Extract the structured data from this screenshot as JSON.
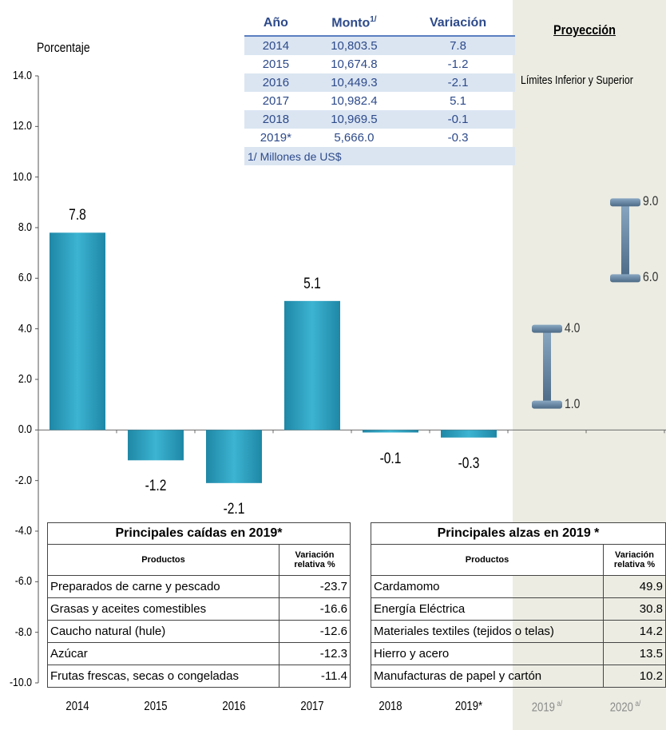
{
  "chart_data": {
    "type": "bar",
    "ylabel": "Porcentaje",
    "ylim": [
      -10,
      14
    ],
    "yticks": [
      "14.0",
      "12.0",
      "10.0",
      "8.0",
      "6.0",
      "4.0",
      "2.0",
      "0.0",
      "-2.0",
      "-4.0",
      "-6.0",
      "-8.0",
      "-10.0"
    ],
    "categories": [
      "2014",
      "2015",
      "2016",
      "2017",
      "2018",
      "2019*"
    ],
    "values": [
      7.8,
      -1.2,
      -2.1,
      5.1,
      -0.1,
      -0.3
    ],
    "value_labels": [
      "7.8",
      "-1.2",
      "-2.1",
      "5.1",
      "-0.1",
      "-0.3"
    ],
    "projection": {
      "title": "Proyección",
      "subtitle": "Límites Inferior y Superior",
      "categories": [
        "2019",
        "2020"
      ],
      "superscript": "a/",
      "ranges": [
        {
          "low": 1.0,
          "high": 4.0,
          "low_label": "1.0",
          "high_label": "4.0"
        },
        {
          "low": 6.0,
          "high": 9.0,
          "low_label": "6.0",
          "high_label": "9.0"
        }
      ]
    },
    "bar_color": "#2ea3c1",
    "projection_color": "#5f7f9c"
  },
  "data_table": {
    "headers": {
      "year": "Año",
      "amount": "Monto",
      "amount_sup": "1/",
      "variation": "Variación"
    },
    "rows": [
      {
        "year": "2014",
        "amount": "10,803.5",
        "variation": "7.8"
      },
      {
        "year": "2015",
        "amount": "10,674.8",
        "variation": "-1.2"
      },
      {
        "year": "2016",
        "amount": "10,449.3",
        "variation": "-2.1"
      },
      {
        "year": "2017",
        "amount": "10,982.4",
        "variation": "5.1"
      },
      {
        "year": "2018",
        "amount": "10,969.5",
        "variation": "-0.1"
      },
      {
        "year": "2019*",
        "amount": "5,666.0",
        "variation": "-0.3"
      }
    ],
    "note": "1/ Millones de US$"
  },
  "falls_table": {
    "title": "Principales caídas en 2019*",
    "col_product": "Productos",
    "col_variation_1": "Variación",
    "col_variation_2": "relativa %",
    "rows": [
      {
        "product": "Preparados de carne y pescado",
        "value": "-23.7"
      },
      {
        "product": "Grasas y aceites comestibles",
        "value": "-16.6"
      },
      {
        "product": "Caucho natural (hule)",
        "value": "-12.6"
      },
      {
        "product": "Azúcar",
        "value": "-12.3"
      },
      {
        "product": "Frutas frescas, secas o congeladas",
        "value": "-11.4"
      }
    ]
  },
  "rises_table": {
    "title": "Principales alzas en 2019 *",
    "col_product": "Productos",
    "col_variation_1": "Variación",
    "col_variation_2": "relativa  %",
    "rows": [
      {
        "product": "Cardamomo",
        "value": "49.9"
      },
      {
        "product": "Energía Eléctrica",
        "value": "30.8"
      },
      {
        "product": "Materiales textiles (tejidos o telas)",
        "value": "14.2"
      },
      {
        "product": "Hierro y acero",
        "value": "13.5"
      },
      {
        "product": "Manufacturas de papel y cartón",
        "value": "10.2"
      }
    ]
  }
}
